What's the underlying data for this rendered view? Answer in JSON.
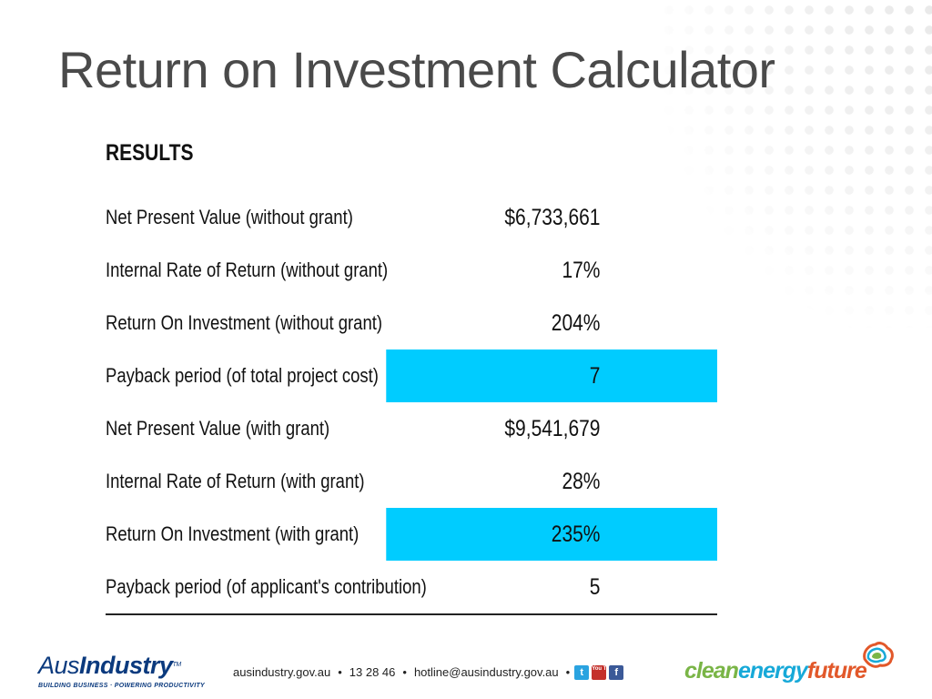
{
  "title": "Return on Investment Calculator",
  "results": {
    "heading": "RESULTS",
    "highlight_color": "#00ccff",
    "rows": [
      {
        "label": "Net Present Value (without grant)",
        "value": "$6,733,661",
        "highlight": false
      },
      {
        "label": "Internal Rate of Return (without grant)",
        "value": "17%",
        "highlight": false
      },
      {
        "label": "Return On Investment (without grant)",
        "value": "204%",
        "highlight": false
      },
      {
        "label": "Payback period (of total project cost)",
        "value": "7",
        "highlight": true
      },
      {
        "label": "Net Present Value (with grant)",
        "value": "$9,541,679",
        "highlight": false
      },
      {
        "label": "Internal Rate of Return (with grant)",
        "value": "28%",
        "highlight": false
      },
      {
        "label": "Return On Investment (with grant)",
        "value": "235%",
        "highlight": true
      },
      {
        "label": "Payback period (of applicant's contribution)",
        "value": "5",
        "highlight": false
      }
    ]
  },
  "footer": {
    "ausindustry": {
      "aus": "Aus",
      "industry": "Industry",
      "tm": "TM",
      "tagline": "BUILDING BUSINESS · POWERING PRODUCTIVITY",
      "color": "#0b3a7e"
    },
    "contact": {
      "website": "ausindustry.gov.au",
      "sep1": "•",
      "phone": "13 28 46",
      "sep2": "•",
      "email": "hotline@ausindustry.gov.au",
      "sep3": "•"
    },
    "social_icons": [
      {
        "name": "twitter-icon",
        "glyph": "t"
      },
      {
        "name": "youtube-icon",
        "glyph": "You Tube"
      },
      {
        "name": "facebook-icon",
        "glyph": "f"
      }
    ],
    "cleanenergyfuture": {
      "clean": "clean",
      "energy": "energy",
      "future": "future",
      "colors": {
        "clean": "#7ab547",
        "energy": "#17a9d8",
        "future": "#e2582a"
      }
    }
  }
}
